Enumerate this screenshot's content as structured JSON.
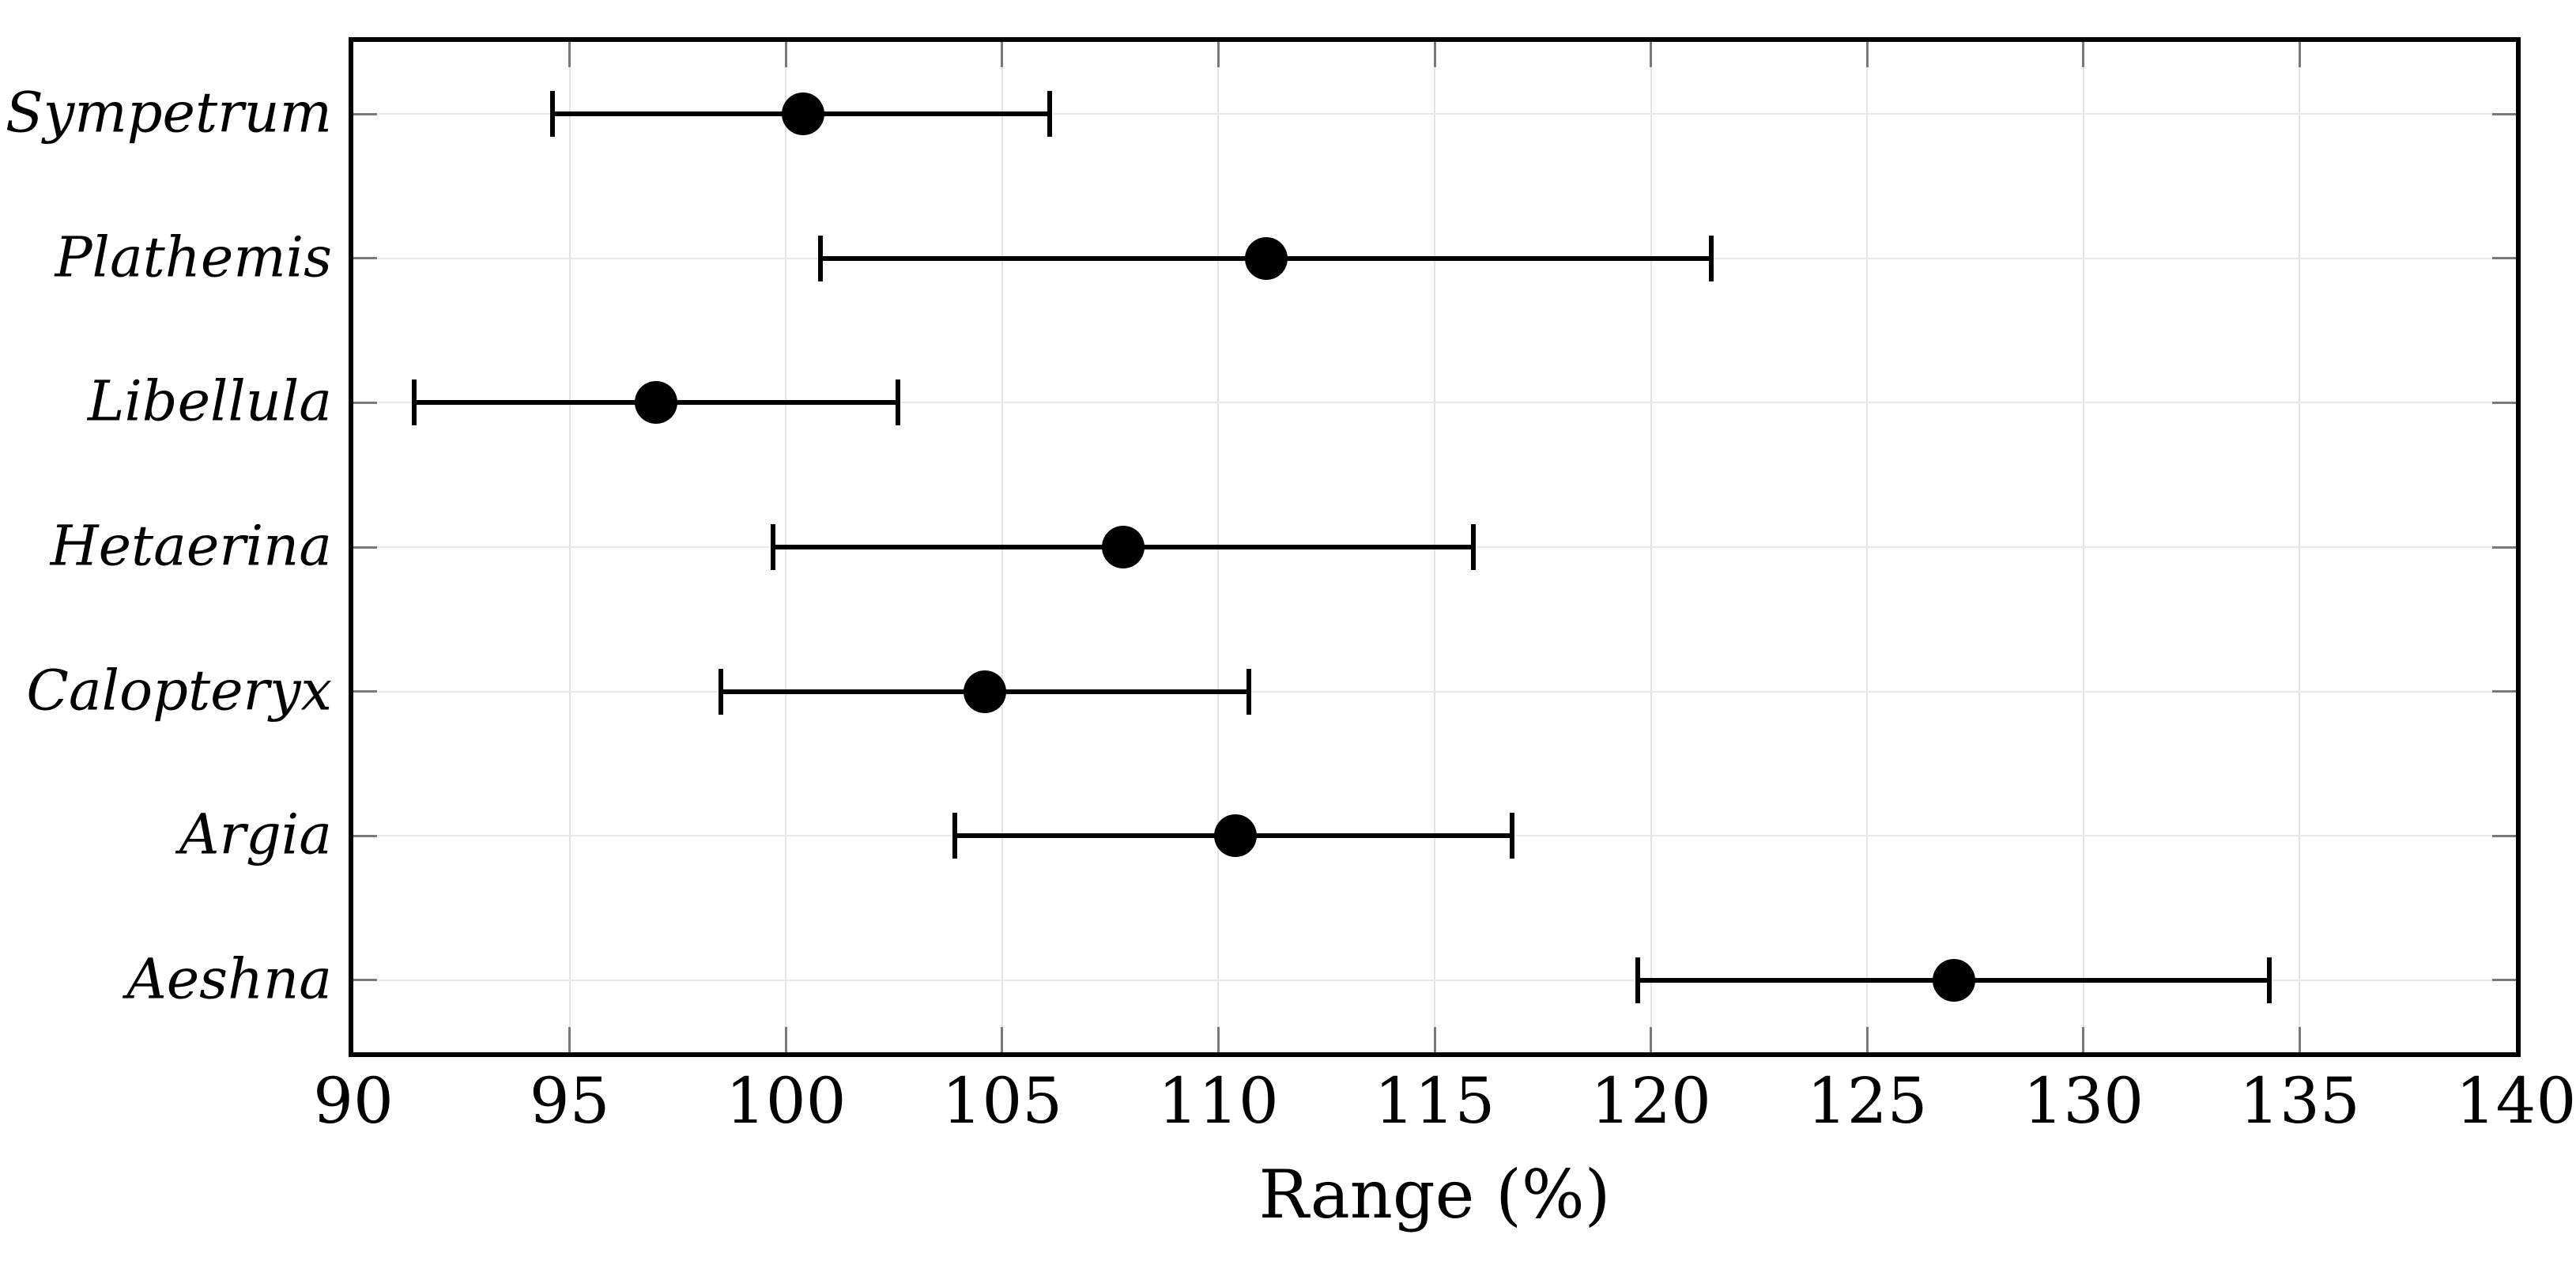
{
  "chart_data": {
    "type": "scatter",
    "subtype": "horizontal-errorbar-dotplot",
    "title": "",
    "xlabel": "Range (%)",
    "ylabel": "",
    "xlim": [
      90,
      140
    ],
    "x_ticks": [
      90,
      95,
      100,
      105,
      110,
      115,
      120,
      125,
      130,
      135,
      140
    ],
    "grid": true,
    "legend": "none",
    "categories_top_to_bottom": [
      "Sympetrum",
      "Plathemis",
      "Libellula",
      "Hetaerina",
      "Calopteryx",
      "Argia",
      "Aeshna"
    ],
    "series": [
      {
        "name": "range-percent",
        "marker": "filled-circle",
        "points": [
          {
            "category": "Sympetrum",
            "value": 100.4,
            "low": 94.6,
            "high": 106.1
          },
          {
            "category": "Plathemis",
            "value": 111.1,
            "low": 100.8,
            "high": 121.4
          },
          {
            "category": "Libellula",
            "value": 97.0,
            "low": 91.4,
            "high": 102.6
          },
          {
            "category": "Hetaerina",
            "value": 107.8,
            "low": 99.7,
            "high": 115.9
          },
          {
            "category": "Calopteryx",
            "value": 104.6,
            "low": 98.5,
            "high": 110.7
          },
          {
            "category": "Argia",
            "value": 110.4,
            "low": 103.9,
            "high": 116.8
          },
          {
            "category": "Aeshna",
            "value": 127.0,
            "low": 119.7,
            "high": 134.3
          }
        ]
      }
    ],
    "colors": {
      "data": "#000000",
      "axis_frame": "#000000",
      "gridline": "#e3e3e3",
      "inner_tick": "#7a7a7a",
      "background": "#ffffff",
      "text": "#000000"
    }
  }
}
